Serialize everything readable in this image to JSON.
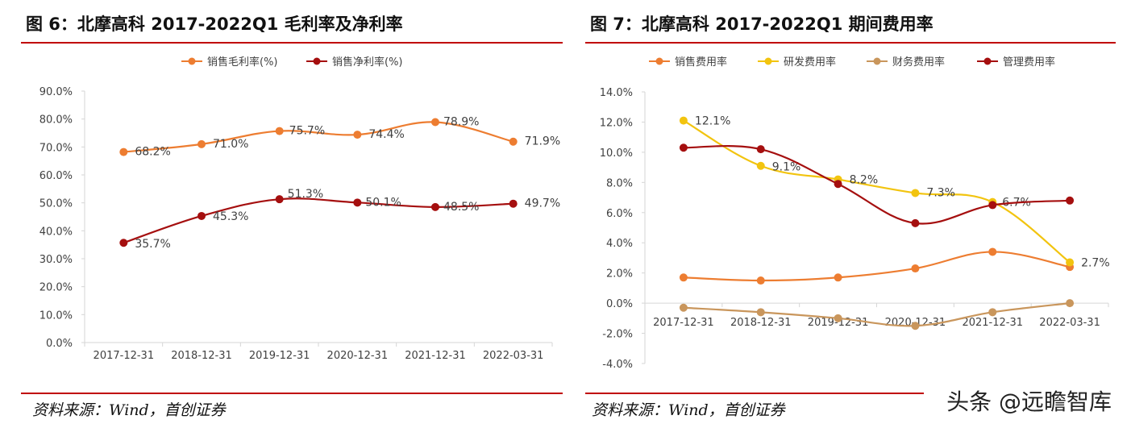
{
  "left": {
    "title": "图 6：北摩高科 2017-2022Q1 毛利率及净利率",
    "source": "资料来源：Wind，首创证券"
  },
  "right": {
    "title": "图 7：北摩高科 2017-2022Q1 期间费用率",
    "source": "资料来源：Wind，首创证券"
  },
  "watermark": "头条 @远瞻智库",
  "chart_data": [
    {
      "type": "line",
      "title": "",
      "categories": [
        "2017-12-31",
        "2018-12-31",
        "2019-12-31",
        "2020-12-31",
        "2021-12-31",
        "2022-03-31"
      ],
      "ylim": [
        0,
        90
      ],
      "yticks": [
        0,
        10,
        20,
        30,
        40,
        50,
        60,
        70,
        80,
        90
      ],
      "y_tick_format": "percent_1dp",
      "grid": false,
      "legend": "top-center",
      "series": [
        {
          "name": "销售毛利率(%)",
          "color": "#ed7d31",
          "values": [
            68.2,
            71.0,
            75.7,
            74.4,
            78.9,
            71.9
          ],
          "labels": [
            "68.2%",
            "71.0%",
            "75.7%",
            "74.4%",
            "78.9%",
            "71.9%"
          ]
        },
        {
          "name": "销售净利率(%)",
          "color": "#a50f0f",
          "values": [
            35.7,
            45.3,
            51.3,
            50.1,
            48.5,
            49.7
          ],
          "labels": [
            "35.7%",
            "45.3%",
            "51.3%",
            "50.1%",
            "48.5%",
            "49.7%"
          ]
        }
      ]
    },
    {
      "type": "line",
      "title": "",
      "categories": [
        "2017-12-31",
        "2018-12-31",
        "2019-12-31",
        "2020-12-31",
        "2021-12-31",
        "2022-03-31"
      ],
      "ylim": [
        -4,
        14
      ],
      "yticks": [
        -4,
        -2,
        0,
        2,
        4,
        6,
        8,
        10,
        12,
        14
      ],
      "y_tick_format": "percent_1dp",
      "grid": false,
      "legend": "top-center",
      "series": [
        {
          "name": "销售费用率",
          "color": "#ed7d31",
          "values": [
            1.7,
            1.5,
            1.7,
            2.3,
            3.4,
            2.4
          ],
          "labels": [
            "",
            "",
            "",
            "",
            "",
            ""
          ]
        },
        {
          "name": "研发费用率",
          "color": "#f2c40f",
          "values": [
            12.1,
            9.1,
            8.2,
            7.3,
            6.7,
            2.7
          ],
          "labels": [
            "12.1%",
            "9.1%",
            "8.2%",
            "7.3%",
            "6.7%",
            "2.7%"
          ]
        },
        {
          "name": "财务费用率",
          "color": "#c9965c",
          "values": [
            -0.3,
            -0.6,
            -1.0,
            -1.5,
            -0.6,
            0.0
          ],
          "labels": [
            "",
            "",
            "",
            "",
            "",
            ""
          ]
        },
        {
          "name": "管理费用率",
          "color": "#a50f0f",
          "values": [
            10.3,
            10.2,
            7.9,
            5.3,
            6.5,
            6.8
          ],
          "labels": [
            "",
            "",
            "",
            "",
            "",
            ""
          ]
        }
      ]
    }
  ]
}
